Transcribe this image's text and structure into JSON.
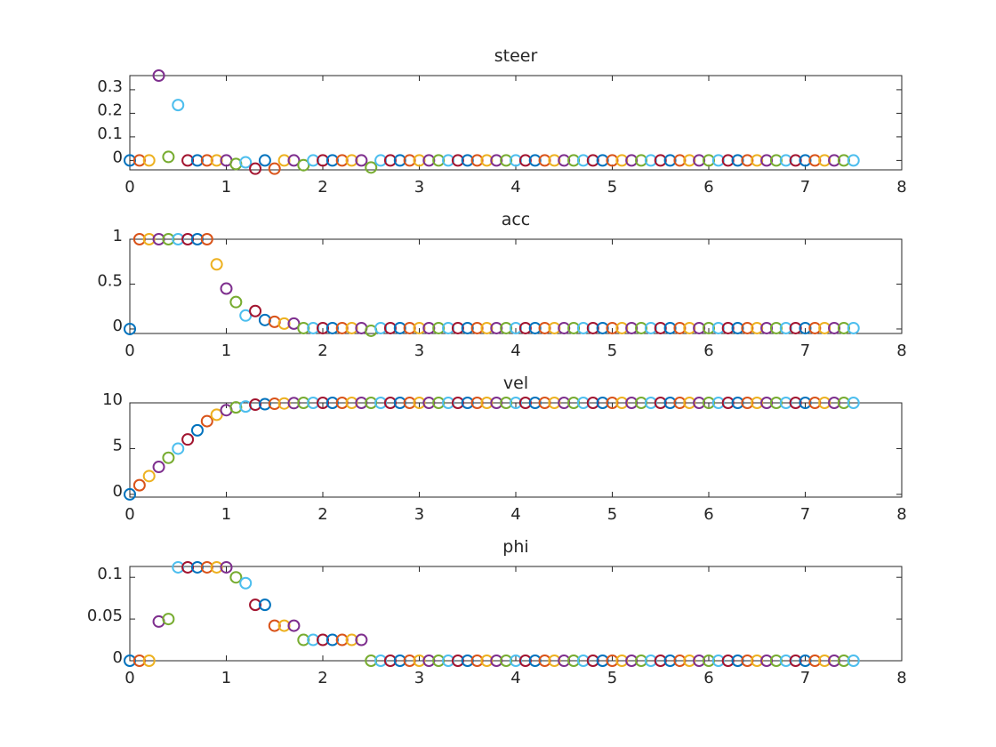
{
  "colors": [
    "#0072BD",
    "#D95319",
    "#EDB120",
    "#7E2F8E",
    "#77AC30",
    "#4DBEEE",
    "#A2142F"
  ],
  "chart_data": [
    {
      "type": "scatter",
      "title": "steer",
      "xlim": [
        0,
        8
      ],
      "ylim": [
        -0.04,
        0.36
      ],
      "xticks": [
        0,
        1,
        2,
        3,
        4,
        5,
        6,
        7,
        8
      ],
      "yticks": [
        0,
        0.1,
        0.2,
        0.3
      ],
      "ytick_labels": [
        "0",
        "0.1",
        "0.2",
        "0.3"
      ],
      "grid": false,
      "x": [
        0,
        0.1,
        0.2,
        0.3,
        0.4,
        0.5,
        0.6,
        0.7,
        0.8,
        0.9,
        1,
        1.1,
        1.2,
        1.3,
        1.4,
        1.5,
        1.6,
        1.7,
        1.8,
        1.9,
        2,
        2.1,
        2.2,
        2.3,
        2.4,
        2.5,
        2.6,
        2.7,
        2.8,
        2.9,
        3,
        3.1,
        3.2,
        3.3,
        3.4,
        3.5,
        3.6,
        3.7,
        3.8,
        3.9,
        4,
        4.1,
        4.2,
        4.3,
        4.4,
        4.5,
        4.6,
        4.7,
        4.8,
        4.9,
        5,
        5.1,
        5.2,
        5.3,
        5.4,
        5.5,
        5.6,
        5.7,
        5.8,
        5.9,
        6,
        6.1,
        6.2,
        6.3,
        6.4,
        6.5,
        6.6,
        6.7,
        6.8,
        6.9,
        7,
        7.1,
        7.2,
        7.3,
        7.4,
        7.5
      ],
      "y": [
        0,
        0,
        0,
        0.36,
        0.015,
        0.235,
        0,
        0,
        0,
        0,
        0,
        -0.015,
        -0.008,
        -0.035,
        0,
        -0.035,
        0,
        0,
        -0.02,
        0,
        0,
        0,
        0,
        0,
        0,
        -0.03,
        0,
        0,
        0,
        0,
        0,
        0,
        0,
        0,
        0,
        0,
        0,
        0,
        0,
        0,
        0,
        0,
        0,
        0,
        0,
        0,
        0,
        0,
        0,
        0,
        0,
        0,
        0,
        0,
        0,
        0,
        0,
        0,
        0,
        0,
        0,
        0,
        0,
        0,
        0,
        0,
        0,
        0,
        0,
        0,
        0,
        0,
        0,
        0,
        0,
        0
      ]
    },
    {
      "type": "scatter",
      "title": "acc",
      "xlim": [
        0,
        8
      ],
      "ylim": [
        -0.05,
        1
      ],
      "xticks": [
        0,
        1,
        2,
        3,
        4,
        5,
        6,
        7,
        8
      ],
      "yticks": [
        0,
        0.5,
        1
      ],
      "ytick_labels": [
        "0",
        "0.5",
        "1"
      ],
      "grid": false,
      "x": [
        0,
        0.1,
        0.2,
        0.3,
        0.4,
        0.5,
        0.6,
        0.7,
        0.8,
        0.9,
        1,
        1.1,
        1.2,
        1.3,
        1.4,
        1.5,
        1.6,
        1.7,
        1.8,
        1.9,
        2,
        2.1,
        2.2,
        2.3,
        2.4,
        2.5,
        2.6,
        2.7,
        2.8,
        2.9,
        3,
        3.1,
        3.2,
        3.3,
        3.4,
        3.5,
        3.6,
        3.7,
        3.8,
        3.9,
        4,
        4.1,
        4.2,
        4.3,
        4.4,
        4.5,
        4.6,
        4.7,
        4.8,
        4.9,
        5,
        5.1,
        5.2,
        5.3,
        5.4,
        5.5,
        5.6,
        5.7,
        5.8,
        5.9,
        6,
        6.1,
        6.2,
        6.3,
        6.4,
        6.5,
        6.6,
        6.7,
        6.8,
        6.9,
        7,
        7.1,
        7.2,
        7.3,
        7.4,
        7.5
      ],
      "y": [
        0,
        1,
        1,
        1,
        1,
        1,
        1,
        1,
        1,
        0.72,
        0.45,
        0.3,
        0.15,
        0.2,
        0.1,
        0.08,
        0.06,
        0.06,
        0.01,
        0.01,
        0.01,
        0.01,
        0.01,
        0.01,
        0.01,
        -0.02,
        0.01,
        0.01,
        0.01,
        0.01,
        0.01,
        0.01,
        0.01,
        0.01,
        0.01,
        0.01,
        0.01,
        0.01,
        0.01,
        0.01,
        0.01,
        0.01,
        0.01,
        0.01,
        0.01,
        0.01,
        0.01,
        0.01,
        0.01,
        0.01,
        0.01,
        0.01,
        0.01,
        0.01,
        0.01,
        0.01,
        0.01,
        0.01,
        0.01,
        0.01,
        0.01,
        0.01,
        0.01,
        0.01,
        0.01,
        0.01,
        0.01,
        0.01,
        0.01,
        0.01,
        0.01,
        0.01,
        0.01,
        0.01,
        0.01,
        0.01
      ]
    },
    {
      "type": "scatter",
      "title": "vel",
      "xlim": [
        0,
        8
      ],
      "ylim": [
        -0.3,
        10
      ],
      "xticks": [
        0,
        1,
        2,
        3,
        4,
        5,
        6,
        7,
        8
      ],
      "yticks": [
        0,
        5,
        10
      ],
      "ytick_labels": [
        "0",
        "5",
        "10"
      ],
      "grid": false,
      "x": [
        0,
        0.1,
        0.2,
        0.3,
        0.4,
        0.5,
        0.6,
        0.7,
        0.8,
        0.9,
        1,
        1.1,
        1.2,
        1.3,
        1.4,
        1.5,
        1.6,
        1.7,
        1.8,
        1.9,
        2,
        2.1,
        2.2,
        2.3,
        2.4,
        2.5,
        2.6,
        2.7,
        2.8,
        2.9,
        3,
        3.1,
        3.2,
        3.3,
        3.4,
        3.5,
        3.6,
        3.7,
        3.8,
        3.9,
        4,
        4.1,
        4.2,
        4.3,
        4.4,
        4.5,
        4.6,
        4.7,
        4.8,
        4.9,
        5,
        5.1,
        5.2,
        5.3,
        5.4,
        5.5,
        5.6,
        5.7,
        5.8,
        5.9,
        6,
        6.1,
        6.2,
        6.3,
        6.4,
        6.5,
        6.6,
        6.7,
        6.8,
        6.9,
        7,
        7.1,
        7.2,
        7.3,
        7.4,
        7.5
      ],
      "y": [
        0,
        1,
        2,
        3,
        4,
        5,
        6,
        7,
        8,
        8.7,
        9.2,
        9.5,
        9.6,
        9.8,
        9.85,
        9.9,
        9.93,
        9.97,
        10,
        10,
        10,
        10,
        10,
        10,
        10,
        10,
        10,
        10,
        10,
        10,
        10,
        10,
        10,
        10,
        10,
        10,
        10,
        10,
        10,
        10,
        10,
        10,
        10,
        10,
        10,
        10,
        10,
        10,
        10,
        10,
        10,
        10,
        10,
        10,
        10,
        10,
        10,
        10,
        10,
        10,
        10,
        10,
        10,
        10,
        10,
        10,
        10,
        10,
        10,
        10,
        10,
        10,
        10,
        10,
        10,
        10
      ]
    },
    {
      "type": "scatter",
      "title": "phi",
      "xlim": [
        0,
        8
      ],
      "ylim": [
        0,
        0.113
      ],
      "xticks": [
        0,
        1,
        2,
        3,
        4,
        5,
        6,
        7,
        8
      ],
      "yticks": [
        0,
        0.05,
        0.1
      ],
      "ytick_labels": [
        "0",
        "0.05",
        "0.1"
      ],
      "grid": false,
      "x": [
        0,
        0.1,
        0.2,
        0.3,
        0.4,
        0.5,
        0.6,
        0.7,
        0.8,
        0.9,
        1,
        1.1,
        1.2,
        1.3,
        1.4,
        1.5,
        1.6,
        1.7,
        1.8,
        1.9,
        2,
        2.1,
        2.2,
        2.3,
        2.4,
        2.5,
        2.6,
        2.7,
        2.8,
        2.9,
        3,
        3.1,
        3.2,
        3.3,
        3.4,
        3.5,
        3.6,
        3.7,
        3.8,
        3.9,
        4,
        4.1,
        4.2,
        4.3,
        4.4,
        4.5,
        4.6,
        4.7,
        4.8,
        4.9,
        5,
        5.1,
        5.2,
        5.3,
        5.4,
        5.5,
        5.6,
        5.7,
        5.8,
        5.9,
        6,
        6.1,
        6.2,
        6.3,
        6.4,
        6.5,
        6.6,
        6.7,
        6.8,
        6.9,
        7,
        7.1,
        7.2,
        7.3,
        7.4,
        7.5
      ],
      "y": [
        0,
        0,
        0,
        0.047,
        0.05,
        0.112,
        0.112,
        0.112,
        0.112,
        0.112,
        0.112,
        0.1,
        0.093,
        0.067,
        0.067,
        0.042,
        0.042,
        0.042,
        0.025,
        0.025,
        0.025,
        0.025,
        0.025,
        0.025,
        0.025,
        0,
        0,
        0,
        0,
        0,
        0,
        0,
        0,
        0,
        0,
        0,
        0,
        0,
        0,
        0,
        0,
        0,
        0,
        0,
        0,
        0,
        0,
        0,
        0,
        0,
        0,
        0,
        0,
        0,
        0,
        0,
        0,
        0,
        0,
        0,
        0,
        0,
        0,
        0,
        0,
        0,
        0,
        0,
        0,
        0,
        0,
        0,
        0,
        0,
        0,
        0
      ]
    }
  ]
}
